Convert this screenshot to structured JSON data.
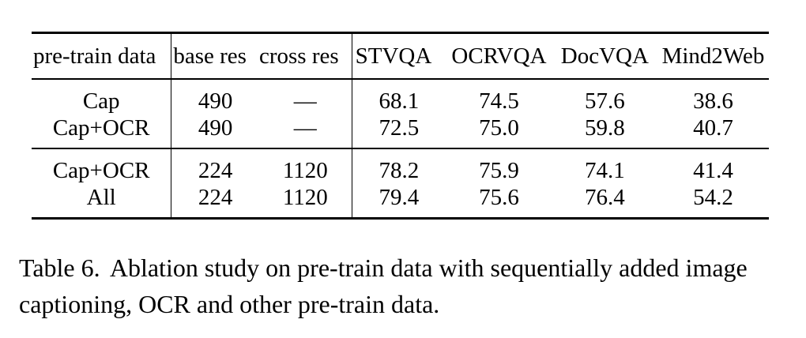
{
  "table": {
    "headers": [
      "pre-train data",
      "base res",
      "cross res",
      "STVQA",
      "OCRVQA",
      "DocVQA",
      "Mind2Web"
    ],
    "groups": [
      {
        "rows": [
          [
            "Cap",
            "490",
            "—",
            "68.1",
            "74.5",
            "57.6",
            "38.6"
          ],
          [
            "Cap+OCR",
            "490",
            "—",
            "72.5",
            "75.0",
            "59.8",
            "40.7"
          ]
        ]
      },
      {
        "rows": [
          [
            "Cap+OCR",
            "224",
            "1120",
            "78.2",
            "75.9",
            "74.1",
            "41.4"
          ],
          [
            "All",
            "224",
            "1120",
            "79.4",
            "75.6",
            "76.4",
            "54.2"
          ]
        ]
      }
    ]
  },
  "caption": {
    "label": "Table 6.",
    "text": "Ablation study on pre-train data with sequentially added image captioning, OCR and other pre-train data."
  }
}
